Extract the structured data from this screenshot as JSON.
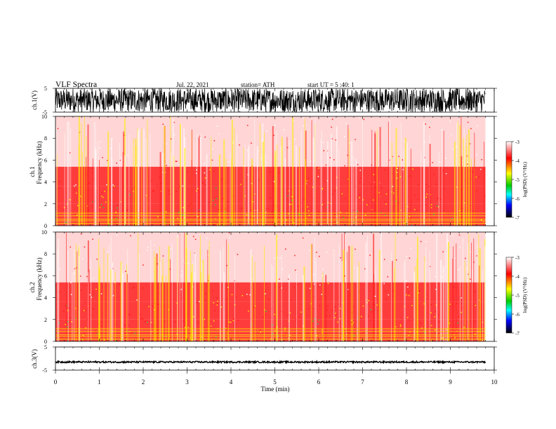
{
  "header": {
    "title": "VLF  Spectra",
    "date": "Jul.  22,  2021",
    "station": "station= ATH",
    "start": "start  UT  =    5  :40: 1"
  },
  "colors": {
    "spectrogram_base": "#ff1a1a",
    "spectrogram_light": "#ffd0d0",
    "spectrogram_yellow": "#ffee00",
    "spectrogram_green": "#33cc33",
    "spectrogram_cyan": "#22cccc",
    "waveform": "#000000"
  },
  "colorbar": {
    "label": "log(PSD) (V²/Hz)",
    "ticks": [
      "-3",
      "-4",
      "-5",
      "-6",
      "-7"
    ],
    "values": [
      -3,
      -4,
      -5,
      -6,
      -7
    ],
    "stops": [
      "#ffffff",
      "#ff0000",
      "#ffff00",
      "#00cc00",
      "#00ffff",
      "#0000ff",
      "#000000"
    ]
  },
  "chart_data": [
    {
      "type": "line",
      "name": "ch1-waveform",
      "ylabel": "ch.1(V)",
      "yticks": [
        "5",
        "-5"
      ],
      "ylim": [
        -5,
        5
      ],
      "xlim": [
        0,
        10
      ],
      "data_extent_min": 9.8,
      "amplitude": "near full scale (±5 V)"
    },
    {
      "type": "heatmap",
      "name": "ch1-spectrogram",
      "ylabel_line1": "ch.1",
      "ylabel_line2": "Frequency  (kHz)",
      "yticks": [
        "0",
        "2",
        "4",
        "6",
        "8",
        "10"
      ],
      "ylim": [
        0,
        10
      ],
      "xlim": [
        0,
        10
      ],
      "data_extent_min": 9.8,
      "bands_khz": [
        {
          "from": 0,
          "to": 1,
          "level": "high"
        },
        {
          "from": 1,
          "to": 2,
          "level": "highest"
        },
        {
          "from": 2,
          "to": 3.6,
          "level": "medium"
        },
        {
          "from": 3.6,
          "to": 5.4,
          "level": "low"
        },
        {
          "from": 5.4,
          "to": 10,
          "level": "lowest"
        }
      ]
    },
    {
      "type": "heatmap",
      "name": "ch2-spectrogram",
      "ylabel_line1": "ch.2",
      "ylabel_line2": "Frequency  (kHz)",
      "yticks": [
        "0",
        "2",
        "4",
        "6",
        "8",
        "10"
      ],
      "ylim": [
        0,
        10
      ],
      "xlim": [
        0,
        10
      ],
      "data_extent_min": 9.8,
      "bands_khz": [
        {
          "from": 0,
          "to": 1,
          "level": "high"
        },
        {
          "from": 1,
          "to": 2,
          "level": "highest"
        },
        {
          "from": 2,
          "to": 3.6,
          "level": "medium"
        },
        {
          "from": 3.6,
          "to": 5.4,
          "level": "low"
        },
        {
          "from": 5.4,
          "to": 10,
          "level": "lowest"
        }
      ]
    },
    {
      "type": "line",
      "name": "ch3-waveform",
      "ylabel": "ch.3(V)",
      "yticks": [
        "5",
        "-5"
      ],
      "ylim": [
        -5,
        5
      ],
      "xlim": [
        0,
        10
      ],
      "data_extent_min": 9.8,
      "amplitude": "small, offset near -1.5 V"
    }
  ],
  "xaxis": {
    "label": "Time  (min)",
    "ticks": [
      "0",
      "1",
      "2",
      "3",
      "4",
      "5",
      "6",
      "7",
      "8",
      "9",
      "10"
    ],
    "values": [
      0,
      1,
      2,
      3,
      4,
      5,
      6,
      7,
      8,
      9,
      10
    ]
  }
}
